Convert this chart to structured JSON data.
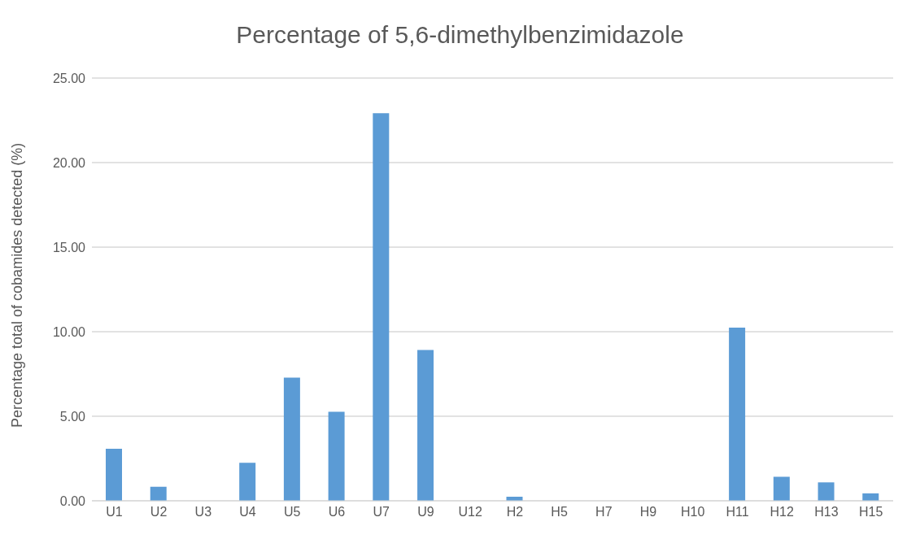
{
  "chart_data": {
    "type": "bar",
    "title": "Percentage of 5,6-dimethylbenzimidazole",
    "ylabel": "Percentage total of cobamides detected (%)",
    "categories": [
      "U1",
      "U2",
      "U3",
      "U4",
      "U5",
      "U6",
      "U7",
      "U9",
      "U12",
      "H2",
      "H5",
      "H7",
      "H9",
      "H10",
      "H11",
      "H12",
      "H13",
      "H15"
    ],
    "values": [
      3.08,
      0.83,
      0,
      2.25,
      7.28,
      5.27,
      22.92,
      8.92,
      0,
      0.24,
      0,
      0,
      0,
      0,
      10.24,
      1.42,
      1.09,
      0.44
    ],
    "color": "#5b9bd5",
    "ylim": [
      0,
      25
    ],
    "yticks": [
      {
        "value": 0,
        "label": "0.00"
      },
      {
        "value": 5,
        "label": "5.00"
      },
      {
        "value": 10,
        "label": "10.00"
      },
      {
        "value": 15,
        "label": "15.00"
      },
      {
        "value": 20,
        "label": "20.00"
      },
      {
        "value": 25,
        "label": "25.00"
      }
    ],
    "grid": "y",
    "legend": false
  }
}
